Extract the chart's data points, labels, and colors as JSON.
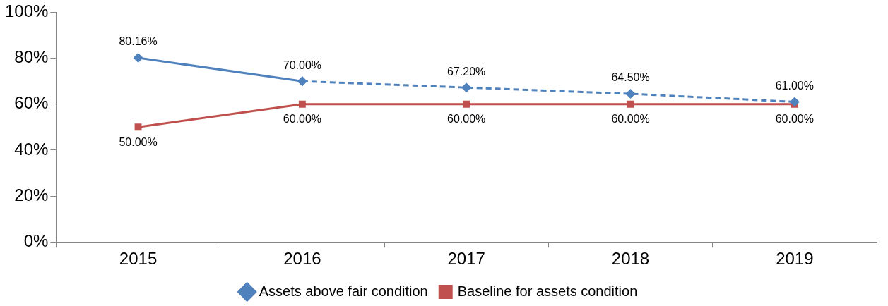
{
  "chart_data": {
    "type": "line",
    "categories": [
      "2015",
      "2016",
      "2017",
      "2018",
      "2019"
    ],
    "series": [
      {
        "color": "#4f81bd",
        "values": [
          80.16,
          70,
          null,
          null,
          null
        ],
        "value_labels": [
          "80.16%",
          "70.00%",
          null,
          null,
          null
        ],
        "marker": "diamond",
        "line_style": "solid"
      },
      {
        "name": "Assets above fair condition",
        "color": "#4f81bd",
        "values": [
          null,
          70,
          67.2,
          64.5,
          61
        ],
        "value_labels": [
          null,
          null,
          "67.20%",
          "64.50%",
          "61.00%"
        ],
        "marker": "diamond",
        "line_style": "dashed"
      },
      {
        "name": "Baseline for assets condition",
        "color": "#c0504d",
        "values": [
          50,
          60,
          60,
          60,
          60
        ],
        "value_labels": [
          "50.00%",
          "60.00%",
          "60.00%",
          "60.00%",
          "60.00%"
        ],
        "marker": "square",
        "line_style": "solid"
      }
    ],
    "ylim": [
      0,
      100
    ],
    "yticks": [
      {
        "value": 0,
        "label": "0%"
      },
      {
        "value": 20,
        "label": "20%"
      },
      {
        "value": 40,
        "label": "40%"
      },
      {
        "value": 60,
        "label": "60%"
      },
      {
        "value": 80,
        "label": "80%"
      },
      {
        "value": 100,
        "label": "100%"
      }
    ],
    "grid": false,
    "legend": "bottom"
  }
}
